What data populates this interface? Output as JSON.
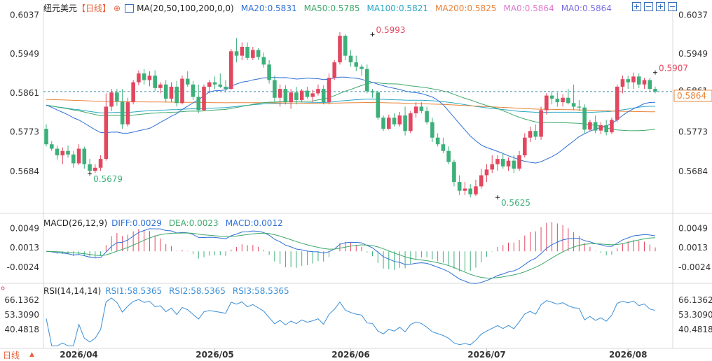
{
  "header": {
    "instrument": "纽元美元",
    "period": "【日线】",
    "ma_label": "MA(20,50,100,200,0,0)",
    "ma20": "MA20:0.5831",
    "ma50": "MA50:0.5785",
    "ma100": "MA100:0.5821",
    "ma200": "MA200:0.5825",
    "ma0a": "MA0:0.5864",
    "ma0b": "MA0:0.5864"
  },
  "macd_header": {
    "label": "MACD(26,12,9)",
    "diff": "DIFF:0.0029",
    "dea": "DEA:0.0023",
    "macd": "MACD:0.0012"
  },
  "rsi_header": {
    "label": "RSI(14,14,14)",
    "rsi1": "RSI1:58.5365",
    "rsi2": "RSI2:58.5365",
    "rsi3": "RSI3:58.5365"
  },
  "bottom_tab": {
    "label": "日线",
    "arrow": "▲"
  },
  "colors": {
    "up": "#e2475f",
    "down": "#3db07a",
    "ma20": "#2f6fd6",
    "ma50": "#3ea86b",
    "ma100": "#2aa7c4",
    "ma200": "#e8843a",
    "macd_diff": "#2f6fd6",
    "macd_dea": "#3ea86b",
    "rsi": "#3b8fd6",
    "price_tag": "#e8843a"
  },
  "chart_data": {
    "type": "candlestick",
    "price_axis": {
      "ticks": [
        0.6037,
        0.5949,
        0.5861,
        0.5773,
        0.5684
      ],
      "labels": [
        "0.6037",
        "0.5949",
        "0.5861",
        "0.5773",
        "0.5684"
      ],
      "range": [
        0.56,
        0.6055
      ]
    },
    "current_price": "0.5864",
    "current_price_partial": "0.5861",
    "annotations": [
      {
        "text": "0.5679",
        "value": 0.5679,
        "index": 8
      },
      {
        "text": "0.5993",
        "value": 0.5993,
        "index": 60
      },
      {
        "text": "0.5625",
        "value": 0.5625,
        "index": 83
      },
      {
        "text": "0.5907",
        "value": 0.5907,
        "index": 112
      }
    ],
    "date_labels": [
      {
        "text": "2026/04",
        "index": 6
      },
      {
        "text": "2026/05",
        "index": 31
      },
      {
        "text": "2026/06",
        "index": 56
      },
      {
        "text": "2026/07",
        "index": 81
      },
      {
        "text": "2026/08",
        "index": 107
      }
    ],
    "ohlc": [
      [
        0.578,
        0.579,
        0.574,
        0.5745
      ],
      [
        0.5745,
        0.5752,
        0.573,
        0.5735
      ],
      [
        0.5735,
        0.5742,
        0.571,
        0.572
      ],
      [
        0.572,
        0.5738,
        0.57,
        0.573
      ],
      [
        0.573,
        0.5742,
        0.5715,
        0.5722
      ],
      [
        0.5722,
        0.573,
        0.5692,
        0.5702
      ],
      [
        0.5702,
        0.5745,
        0.5698,
        0.5735
      ],
      [
        0.5735,
        0.574,
        0.569,
        0.57
      ],
      [
        0.57,
        0.5712,
        0.5679,
        0.5685
      ],
      [
        0.5685,
        0.57,
        0.568,
        0.5692
      ],
      [
        0.5692,
        0.572,
        0.5685,
        0.5712
      ],
      [
        0.5712,
        0.586,
        0.5708,
        0.583
      ],
      [
        0.583,
        0.587,
        0.582,
        0.5862
      ],
      [
        0.5862,
        0.587,
        0.5832,
        0.5842
      ],
      [
        0.5842,
        0.587,
        0.578,
        0.579
      ],
      [
        0.579,
        0.585,
        0.5785,
        0.584
      ],
      [
        0.584,
        0.589,
        0.5835,
        0.5885
      ],
      [
        0.5885,
        0.5912,
        0.5878,
        0.5905
      ],
      [
        0.5905,
        0.5915,
        0.588,
        0.589
      ],
      [
        0.589,
        0.591,
        0.5876,
        0.59
      ],
      [
        0.59,
        0.5912,
        0.5865,
        0.5872
      ],
      [
        0.5872,
        0.5885,
        0.586,
        0.588
      ],
      [
        0.588,
        0.589,
        0.584,
        0.5848
      ],
      [
        0.5848,
        0.5885,
        0.584,
        0.5875
      ],
      [
        0.5875,
        0.5888,
        0.583,
        0.5838
      ],
      [
        0.5838,
        0.59,
        0.5835,
        0.5893
      ],
      [
        0.5893,
        0.591,
        0.5875,
        0.588
      ],
      [
        0.588,
        0.5888,
        0.5845,
        0.5852
      ],
      [
        0.5852,
        0.588,
        0.5815,
        0.5822
      ],
      [
        0.5822,
        0.588,
        0.582,
        0.5875
      ],
      [
        0.5875,
        0.589,
        0.586,
        0.5885
      ],
      [
        0.5885,
        0.5898,
        0.587,
        0.588
      ],
      [
        0.588,
        0.5905,
        0.5872,
        0.5875
      ],
      [
        0.5875,
        0.589,
        0.5862,
        0.587
      ],
      [
        0.587,
        0.596,
        0.5868,
        0.5955
      ],
      [
        0.5955,
        0.5985,
        0.593,
        0.5945
      ],
      [
        0.5945,
        0.5975,
        0.5935,
        0.5965
      ],
      [
        0.5965,
        0.5975,
        0.5935,
        0.594
      ],
      [
        0.594,
        0.5965,
        0.5935,
        0.5958
      ],
      [
        0.5958,
        0.5962,
        0.5935,
        0.5942
      ],
      [
        0.5942,
        0.5952,
        0.5918,
        0.5925
      ],
      [
        0.5925,
        0.5935,
        0.5882,
        0.589
      ],
      [
        0.589,
        0.59,
        0.584,
        0.585
      ],
      [
        0.585,
        0.588,
        0.583,
        0.587
      ],
      [
        0.587,
        0.5878,
        0.5835,
        0.584
      ],
      [
        0.584,
        0.587,
        0.5825,
        0.5862
      ],
      [
        0.5862,
        0.5875,
        0.5835,
        0.5845
      ],
      [
        0.5845,
        0.587,
        0.584,
        0.5866
      ],
      [
        0.5866,
        0.5875,
        0.5848,
        0.5852
      ],
      [
        0.5852,
        0.5868,
        0.584,
        0.586
      ],
      [
        0.586,
        0.588,
        0.5855,
        0.587
      ],
      [
        0.587,
        0.5878,
        0.5835,
        0.584
      ],
      [
        0.584,
        0.5905,
        0.5835,
        0.5895
      ],
      [
        0.5895,
        0.5935,
        0.589,
        0.593
      ],
      [
        0.593,
        0.5998,
        0.5925,
        0.599
      ],
      [
        0.599,
        0.5993,
        0.5935,
        0.5945
      ],
      [
        0.5945,
        0.5958,
        0.592,
        0.593
      ],
      [
        0.593,
        0.5945,
        0.591,
        0.592
      ],
      [
        0.592,
        0.5925,
        0.59,
        0.5915
      ],
      [
        0.5915,
        0.5925,
        0.586,
        0.5865
      ],
      [
        0.5865,
        0.587,
        0.585,
        0.5862
      ],
      [
        0.5862,
        0.5866,
        0.58,
        0.5805
      ],
      [
        0.5805,
        0.581,
        0.5775,
        0.578
      ],
      [
        0.578,
        0.5812,
        0.5778,
        0.5805
      ],
      [
        0.5805,
        0.5815,
        0.5785,
        0.579
      ],
      [
        0.579,
        0.5818,
        0.5785,
        0.581
      ],
      [
        0.581,
        0.583,
        0.5765,
        0.5775
      ],
      [
        0.5775,
        0.582,
        0.577,
        0.5815
      ],
      [
        0.5815,
        0.584,
        0.5805,
        0.583
      ],
      [
        0.583,
        0.584,
        0.5815,
        0.582
      ],
      [
        0.582,
        0.583,
        0.579,
        0.5795
      ],
      [
        0.5795,
        0.5805,
        0.575,
        0.576
      ],
      [
        0.576,
        0.577,
        0.574,
        0.5745
      ],
      [
        0.5745,
        0.576,
        0.5725,
        0.573
      ],
      [
        0.573,
        0.574,
        0.57,
        0.5705
      ],
      [
        0.5705,
        0.571,
        0.565,
        0.566
      ],
      [
        0.566,
        0.5675,
        0.563,
        0.564
      ],
      [
        0.564,
        0.566,
        0.563,
        0.5645
      ],
      [
        0.5645,
        0.5655,
        0.5625,
        0.5632
      ],
      [
        0.5632,
        0.5665,
        0.5628,
        0.565
      ],
      [
        0.565,
        0.569,
        0.5645,
        0.5675
      ],
      [
        0.5675,
        0.57,
        0.566,
        0.5688
      ],
      [
        0.5688,
        0.572,
        0.568,
        0.57
      ],
      [
        0.57,
        0.572,
        0.5685,
        0.5712
      ],
      [
        0.5712,
        0.5725,
        0.569,
        0.5695
      ],
      [
        0.5695,
        0.5715,
        0.5685,
        0.5708
      ],
      [
        0.5708,
        0.572,
        0.568,
        0.569
      ],
      [
        0.569,
        0.573,
        0.5685,
        0.572
      ],
      [
        0.572,
        0.577,
        0.5715,
        0.576
      ],
      [
        0.576,
        0.5785,
        0.575,
        0.5775
      ],
      [
        0.5775,
        0.579,
        0.5755,
        0.5762
      ],
      [
        0.5762,
        0.583,
        0.5755,
        0.5822
      ],
      [
        0.5822,
        0.586,
        0.5812,
        0.5855
      ],
      [
        0.5855,
        0.5865,
        0.5835,
        0.5848
      ],
      [
        0.5848,
        0.5862,
        0.583,
        0.584
      ],
      [
        0.584,
        0.5858,
        0.583,
        0.585
      ],
      [
        0.585,
        0.587,
        0.5835,
        0.5838
      ],
      [
        0.5838,
        0.588,
        0.5822,
        0.583
      ],
      [
        0.583,
        0.5845,
        0.582,
        0.5828
      ],
      [
        0.5828,
        0.5835,
        0.577,
        0.5778
      ],
      [
        0.5778,
        0.58,
        0.5775,
        0.5795
      ],
      [
        0.5795,
        0.581,
        0.577,
        0.5776
      ],
      [
        0.5776,
        0.5795,
        0.5768,
        0.5788
      ],
      [
        0.5788,
        0.58,
        0.5765,
        0.5772
      ],
      [
        0.5772,
        0.5805,
        0.5768,
        0.58
      ],
      [
        0.58,
        0.588,
        0.5795,
        0.5875
      ],
      [
        0.5875,
        0.59,
        0.586,
        0.5892
      ],
      [
        0.5892,
        0.59,
        0.587,
        0.5885
      ],
      [
        0.5885,
        0.5907,
        0.587,
        0.5898
      ],
      [
        0.5898,
        0.5905,
        0.5872,
        0.588
      ],
      [
        0.588,
        0.5895,
        0.587,
        0.589
      ],
      [
        0.589,
        0.5895,
        0.5865,
        0.587
      ],
      [
        0.587,
        0.5875,
        0.586,
        0.5864
      ]
    ],
    "macd": {
      "ticks": [
        0.0049,
        0.0013,
        -0.0024
      ],
      "labels": [
        "0.0049",
        "0.0013",
        "-0.0024"
      ],
      "range": [
        -0.005,
        0.006
      ],
      "diff_last": 0.0029,
      "dea_last": 0.0023,
      "macd_last": 0.0012
    },
    "rsi": {
      "ticks": [
        66.1362,
        53.309,
        40.4818
      ],
      "labels": [
        "66.1362",
        "53.3090",
        "40.4818"
      ],
      "range": [
        25,
        73
      ],
      "last": 58.5365
    }
  }
}
